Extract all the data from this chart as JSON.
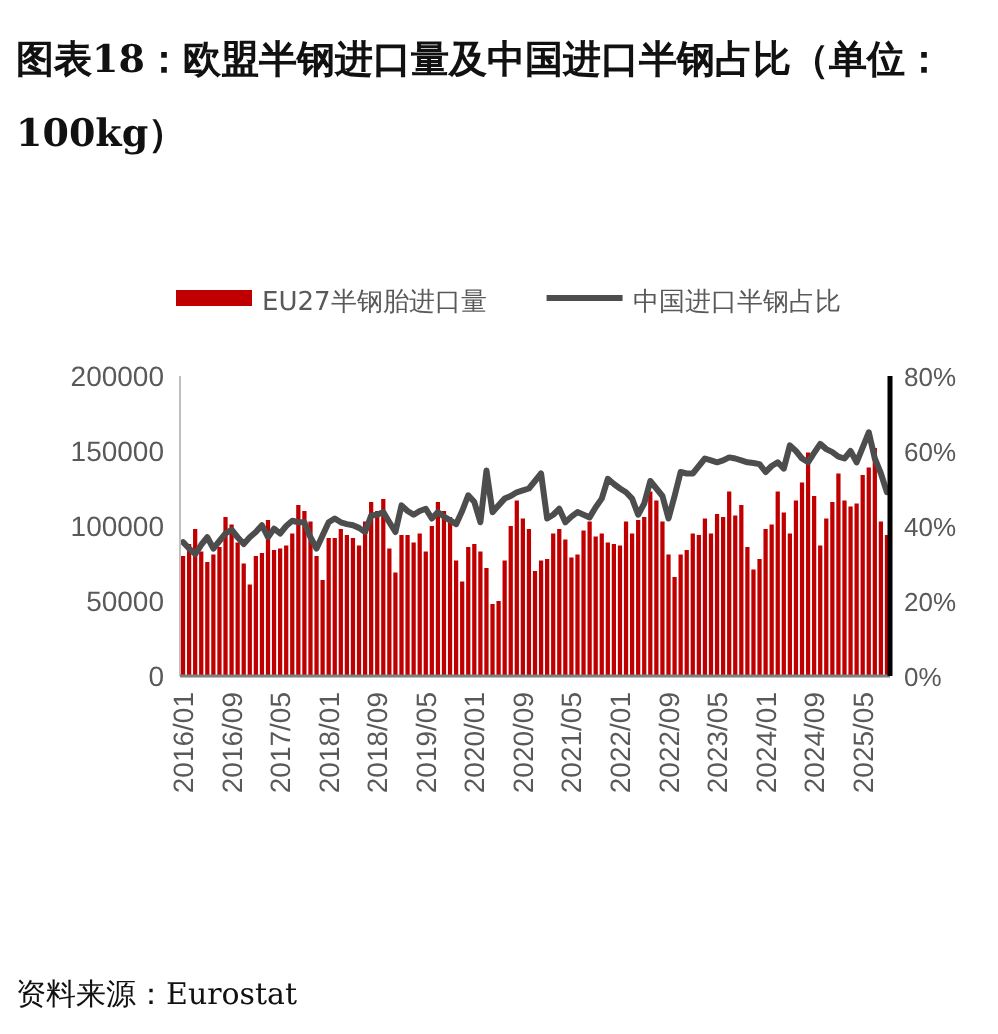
{
  "chart_data": {
    "type": "bar",
    "title": "图表18：欧盟半钢进口量及中国进口半钢占比（单位：100kg）",
    "annotations": [
      "资料来源：Eurostat"
    ],
    "categories": [
      "2016/01",
      null,
      null,
      null,
      null,
      null,
      null,
      null,
      "2016/09",
      null,
      null,
      null,
      null,
      null,
      null,
      null,
      "2017/05",
      null,
      null,
      null,
      null,
      null,
      null,
      null,
      "2018/01",
      null,
      null,
      null,
      null,
      null,
      null,
      null,
      "2018/09",
      null,
      null,
      null,
      null,
      null,
      null,
      null,
      "2019/05",
      null,
      null,
      null,
      null,
      null,
      null,
      null,
      "2020/01",
      null,
      null,
      null,
      null,
      null,
      null,
      null,
      "2020/09",
      null,
      null,
      null,
      null,
      null,
      null,
      null,
      "2021/05",
      null,
      null,
      null,
      null,
      null,
      null,
      null,
      "2022/01",
      null,
      null,
      null,
      null,
      null,
      null,
      null,
      "2022/09",
      null,
      null,
      null,
      null,
      null,
      null,
      null,
      "2023/05",
      null,
      null,
      null,
      null,
      null,
      null,
      null,
      "2024/01",
      null,
      null,
      null,
      null,
      null,
      null,
      null,
      "2024/09",
      null,
      null,
      null,
      null,
      null,
      null,
      null,
      "2025/05",
      null,
      null,
      null,
      null
    ],
    "series": [
      {
        "name": "EU27半钢胎进口量",
        "color": "#c00000",
        "values": [
          80000,
          88000,
          98000,
          83000,
          76000,
          81000,
          86000,
          106000,
          101000,
          89000,
          75000,
          61000,
          80000,
          82000,
          104000,
          84000,
          85000,
          87000,
          95000,
          114000,
          110000,
          103000,
          80000,
          64000,
          92000,
          92000,
          98000,
          94000,
          92000,
          87000,
          103000,
          116000,
          110000,
          118000,
          85000,
          69000,
          94000,
          94000,
          89000,
          95000,
          83000,
          100000,
          116000,
          110000,
          106000,
          77000,
          63000,
          86000,
          88000,
          83000,
          72000,
          48000,
          50000,
          77000,
          100000,
          117000,
          105000,
          98000,
          70000,
          77000,
          78000,
          95000,
          98000,
          91000,
          79000,
          81000,
          97000,
          103000,
          93000,
          95000,
          89000,
          88000,
          87000,
          103000,
          95000,
          104000,
          106000,
          123000,
          117000,
          103000,
          81000,
          66000,
          81000,
          84000,
          95000,
          94000,
          105000,
          95000,
          108000,
          106000,
          123000,
          107000,
          114000,
          86000,
          71000,
          78000,
          98000,
          101000,
          123000,
          109000,
          95000,
          117000,
          129000,
          149000,
          120000,
          87000,
          105000,
          116000,
          135000,
          117000,
          113000,
          115000,
          134000,
          139000,
          152000,
          103000,
          94000
        ]
      },
      {
        "name": "中国进口半钢占比",
        "type": "line",
        "axis": "y2",
        "color": "#4d4d4d",
        "values": [
          35.7,
          34,
          32.5,
          35,
          37,
          34,
          36,
          38,
          39,
          37,
          35.2,
          37,
          38.4,
          40.2,
          37,
          39.3,
          38,
          40,
          41.4,
          41,
          41,
          37,
          34,
          37.5,
          41,
          42,
          41,
          40.5,
          40.2,
          39.5,
          38.4,
          42.8,
          43,
          43.7,
          41,
          38.4,
          45.5,
          44,
          43,
          44,
          44.6,
          42,
          43.7,
          42.5,
          41.5,
          40.5,
          44,
          48.2,
          46.4,
          41,
          54.8,
          43.7,
          45.5,
          47.3,
          48,
          49,
          49.5,
          50,
          52,
          54,
          42,
          43,
          44.6,
          41,
          42.5,
          43.7,
          43,
          42.3,
          45,
          47.3,
          52.6,
          51.2,
          50,
          49,
          47.3,
          43,
          46,
          52,
          50,
          48,
          42,
          48,
          54.4,
          54,
          54,
          56,
          58,
          57.5,
          57,
          57.5,
          58.3,
          58,
          57.5,
          57,
          56.8,
          56.5,
          54.4,
          56,
          57,
          55.3,
          61.5,
          60,
          58,
          57,
          59.5,
          61.9,
          60.5,
          59.7,
          58.5,
          58,
          60,
          57,
          61,
          65,
          58,
          54,
          49
        ]
      }
    ],
    "ylim": [
      0,
      200000
    ],
    "yticks": [
      0,
      50000,
      100000,
      150000,
      200000
    ],
    "y2lim": [
      0,
      80
    ],
    "y2ticks": [
      {
        "value": 0,
        "label": "0%"
      },
      {
        "value": 20,
        "label": "20%"
      },
      {
        "value": 40,
        "label": "40%"
      },
      {
        "value": 60,
        "label": "60%"
      },
      {
        "value": 80,
        "label": "80%"
      }
    ],
    "legend": "top"
  }
}
